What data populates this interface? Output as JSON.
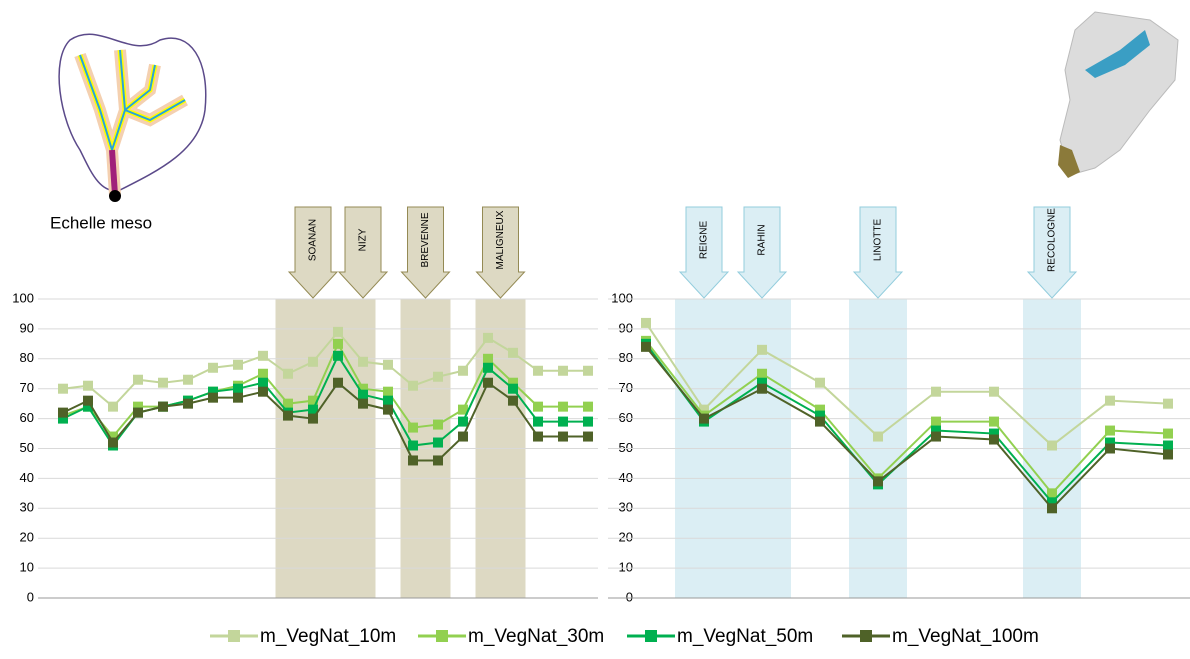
{
  "caption": "Echelle meso",
  "chart_data": [
    {
      "type": "line",
      "categories": [
        null,
        null,
        null,
        null,
        null,
        null,
        null,
        null,
        null,
        null,
        null,
        null,
        null,
        null,
        null,
        null,
        null,
        null,
        null,
        null,
        null,
        null
      ],
      "ylim": [
        0,
        100
      ],
      "yticks": [
        0,
        10,
        20,
        30,
        40,
        50,
        60,
        70,
        80,
        90,
        100
      ],
      "grid": true,
      "band_color": "#ddd9c3",
      "arrow_stroke": "#948a54",
      "bands": [
        {
          "from": 9,
          "to": 12
        },
        {
          "from": 14,
          "to": 15
        },
        {
          "from": 17,
          "to": 18
        }
      ],
      "arrows": [
        {
          "label": "SOANAN",
          "at": 10
        },
        {
          "label": "NIZY",
          "at": 12
        },
        {
          "label": "BREVENNE",
          "at": 14.5
        },
        {
          "label": "MALIGNEUX",
          "at": 17.5
        }
      ],
      "series": [
        {
          "name": "m_VegNat_10m",
          "color": "#c3d69b",
          "values": [
            70,
            71,
            64,
            73,
            72,
            73,
            77,
            78,
            81,
            75,
            79,
            89,
            79,
            78,
            71,
            74,
            76,
            87,
            82,
            76,
            76,
            76
          ]
        },
        {
          "name": "m_VegNat_30m",
          "color": "#92d050",
          "values": [
            61,
            64,
            54,
            64,
            64,
            66,
            69,
            71,
            75,
            65,
            66,
            85,
            70,
            69,
            57,
            58,
            63,
            80,
            72,
            64,
            64,
            64
          ]
        },
        {
          "name": "m_VegNat_50m",
          "color": "#00b050",
          "values": [
            60,
            64,
            51,
            62,
            64,
            66,
            69,
            70,
            72,
            62,
            63,
            81,
            68,
            66,
            51,
            52,
            59,
            77,
            70,
            59,
            59,
            59
          ]
        },
        {
          "name": "m_VegNat_100m",
          "color": "#4f6228",
          "values": [
            62,
            66,
            52,
            62,
            64,
            65,
            67,
            67,
            69,
            61,
            60,
            72,
            65,
            63,
            46,
            46,
            54,
            72,
            66,
            54,
            54,
            54
          ]
        }
      ]
    },
    {
      "type": "line",
      "categories": [
        null,
        null,
        null,
        null,
        null,
        null,
        null,
        null,
        null,
        null
      ],
      "ylim": [
        0,
        100
      ],
      "yticks": [
        0,
        10,
        20,
        30,
        40,
        50,
        60,
        70,
        80,
        90,
        100
      ],
      "grid": true,
      "band_color": "#dbeef4",
      "arrow_stroke": "#93cddd",
      "bands": [
        {
          "from": 1,
          "to": 2
        },
        {
          "from": 4,
          "to": 4
        },
        {
          "from": 7,
          "to": 7
        }
      ],
      "arrows": [
        {
          "label": "REIGNE",
          "at": 1
        },
        {
          "label": "RAHIN",
          "at": 2
        },
        {
          "label": "LINOTTE",
          "at": 4
        },
        {
          "label": "RECOLOGNE",
          "at": 7
        }
      ],
      "series": [
        {
          "color": "#c3d69b",
          "values": [
            92,
            63,
            83,
            72,
            54,
            69,
            69,
            51,
            66,
            65
          ]
        },
        {
          "color": "#92d050",
          "values": [
            86,
            61,
            75,
            63,
            40,
            59,
            59,
            35,
            56,
            55
          ]
        },
        {
          "color": "#00b050",
          "values": [
            85,
            59,
            72,
            61,
            38,
            56,
            55,
            32,
            52,
            51
          ]
        },
        {
          "color": "#4f6228",
          "values": [
            84,
            60,
            70,
            59,
            39,
            54,
            53,
            30,
            50,
            48
          ]
        }
      ]
    }
  ]
}
